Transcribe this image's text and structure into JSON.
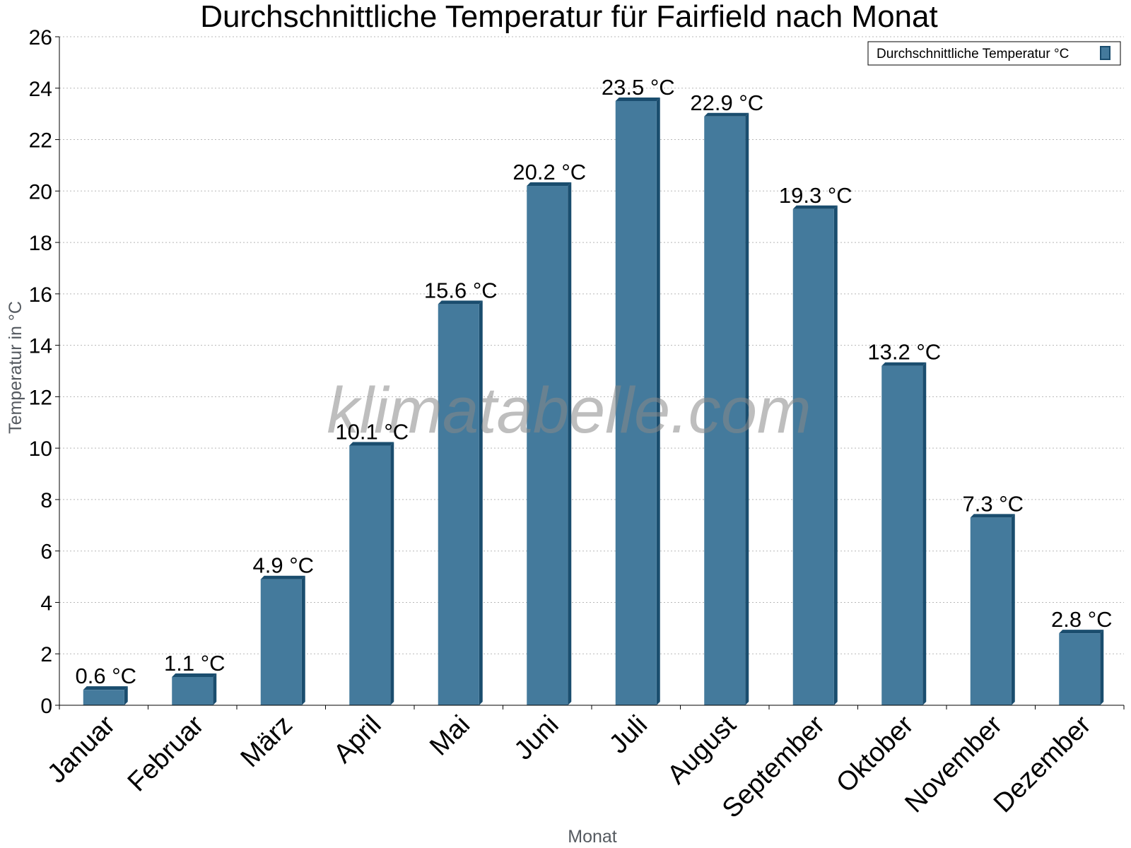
{
  "chart_data": {
    "type": "bar",
    "title": "Durchschnittliche Temperatur für Fairfield nach Monat",
    "xlabel": "Monat",
    "ylabel": "Temperatur in °C",
    "ylim": [
      0,
      26
    ],
    "yticks": [
      0,
      2,
      4,
      6,
      8,
      10,
      12,
      14,
      16,
      18,
      20,
      22,
      24,
      26
    ],
    "grid": true,
    "legend_position": "top-right",
    "categories": [
      "Januar",
      "Februar",
      "März",
      "April",
      "Mai",
      "Juni",
      "Juli",
      "August",
      "September",
      "Oktober",
      "November",
      "Dezember"
    ],
    "series": [
      {
        "name": "Durchschnittliche Temperatur °C",
        "values": [
          0.6,
          1.1,
          4.9,
          10.1,
          15.6,
          20.2,
          23.5,
          22.9,
          19.3,
          13.2,
          7.3,
          2.8
        ],
        "labels": [
          "0.6 °C",
          "1.1 °C",
          "4.9 °C",
          "10.1 °C",
          "15.6 °C",
          "20.2 °C",
          "23.5 °C",
          "22.9 °C",
          "19.3 °C",
          "13.2 °C",
          "7.3 °C",
          "2.8 °C"
        ],
        "color": "#447a9c",
        "edge_color": "#1a4d6e"
      }
    ]
  },
  "watermark": "klimatabelle.com"
}
